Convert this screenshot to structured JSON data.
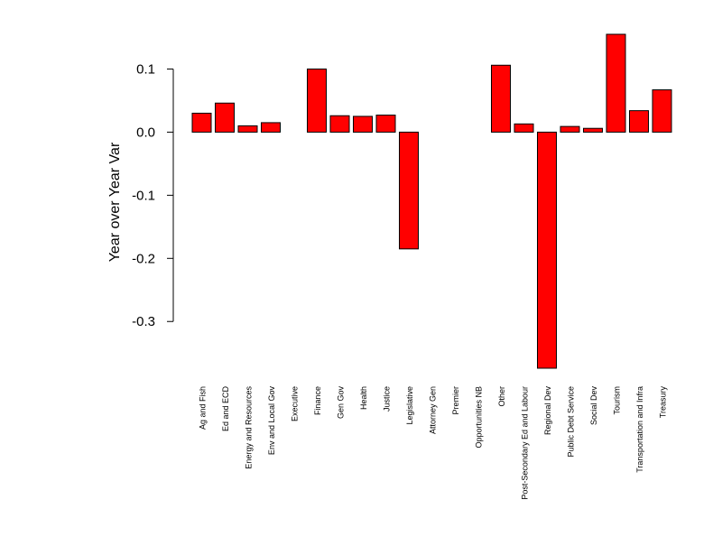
{
  "chart_data": {
    "type": "bar",
    "title": "",
    "xlabel": "",
    "ylabel": "Year over Year Var",
    "categories": [
      "Ag and Fish",
      "Ed and ECD",
      "Energy and Resources",
      "Env and Local Gov",
      "Executive",
      "Finance",
      "Gen Gov",
      "Health",
      "Justice",
      "Legislative",
      "Attorney Gen",
      "Premier",
      "Opportunities NB",
      "Other",
      "Post-Secondary Ed and Labour",
      "Regional Dev",
      "Public Debt Service",
      "Social Dev",
      "Tourism",
      "Transportation and Infra",
      "Treasury"
    ],
    "values": [
      0.03,
      0.046,
      0.01,
      0.015,
      0.0,
      0.1,
      0.026,
      0.025,
      0.027,
      -0.185,
      0.0,
      0.0,
      0.0,
      0.106,
      0.013,
      -0.374,
      0.009,
      0.006,
      0.155,
      0.034,
      0.067
    ],
    "y_ticks": [
      0.1,
      0.0,
      -0.1,
      -0.2,
      -0.3
    ],
    "y_tick_labels": [
      "0.1",
      "0.0",
      "-0.1",
      "-0.2",
      "-0.3"
    ],
    "ylim": [
      -0.374,
      0.155
    ],
    "grid": false,
    "legend": "none",
    "colors": {
      "bar_fill": "#ff0000",
      "bar_stroke": "#000000",
      "axis": "#000000",
      "background": "#ffffff"
    }
  }
}
